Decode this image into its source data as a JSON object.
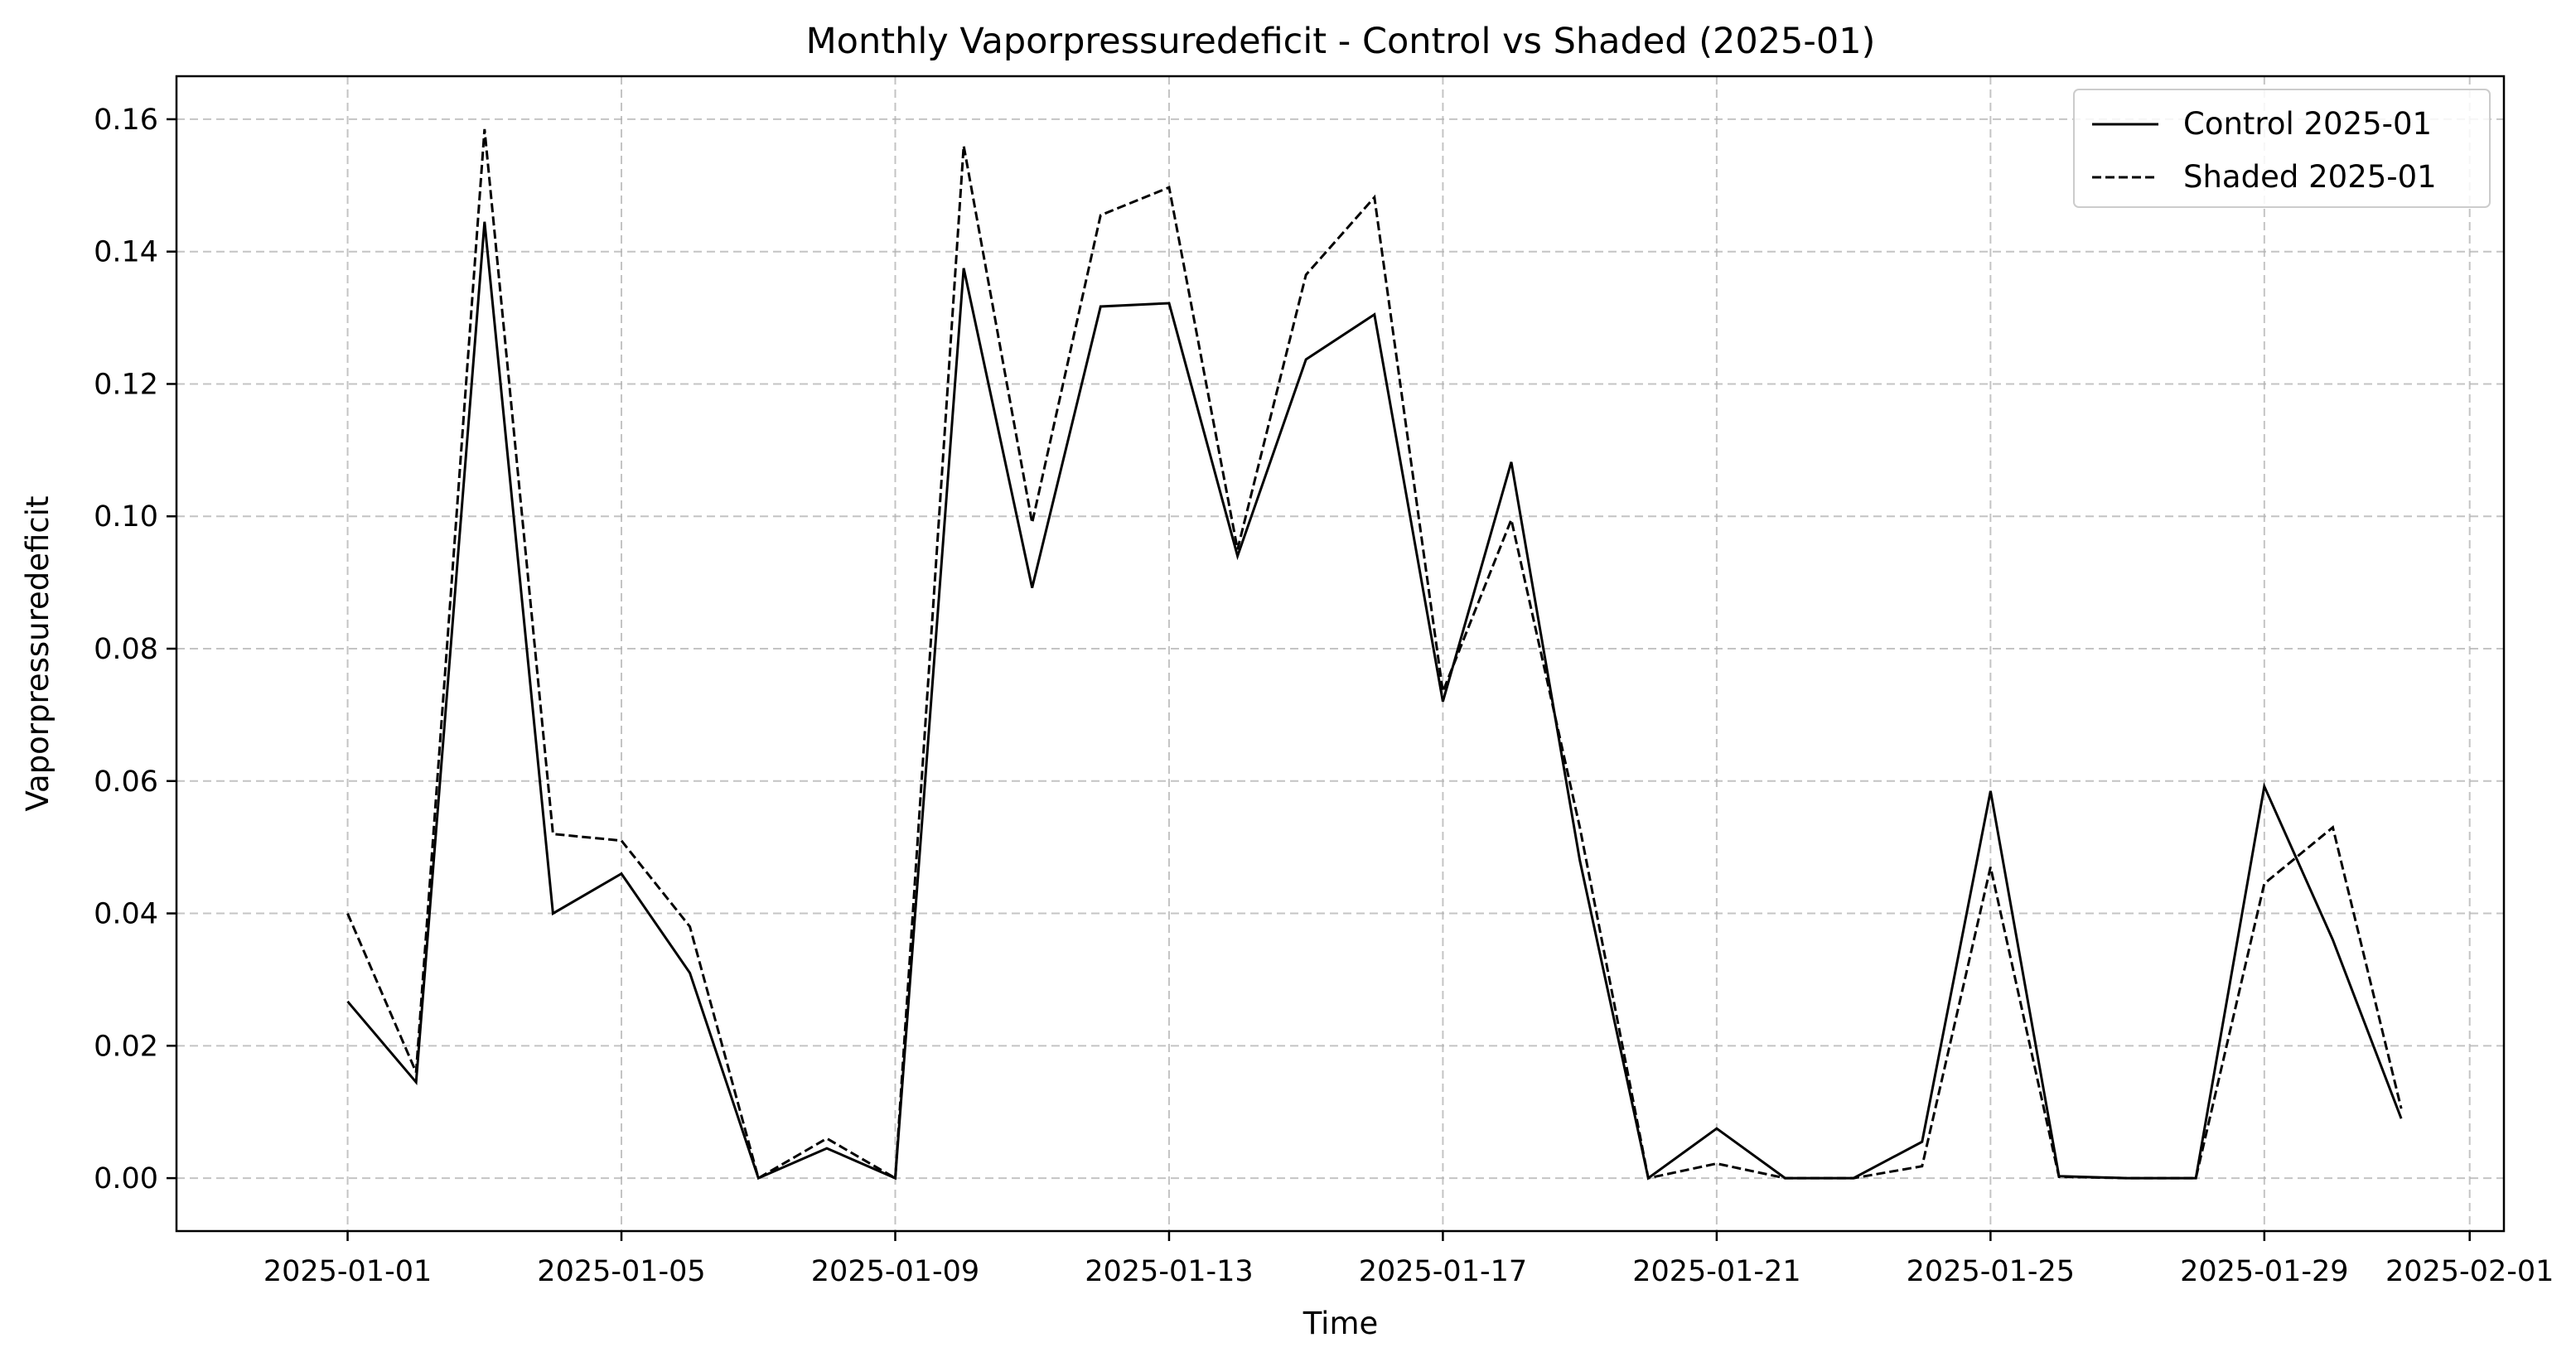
{
  "chart_data": {
    "type": "line",
    "title": "Monthly Vaporpressuredeficit - Control vs Shaded (2025-01)",
    "xlabel": "Time",
    "ylabel": "Vaporpressuredeficit",
    "xlim": [
      "2024-12-29T12:00",
      "2025-02-01T12:00"
    ],
    "ylim": [
      -0.008,
      0.1665
    ],
    "x_ticks": [
      "2025-01-01",
      "2025-01-05",
      "2025-01-09",
      "2025-01-13",
      "2025-01-17",
      "2025-01-21",
      "2025-01-25",
      "2025-01-29",
      "2025-02-01"
    ],
    "y_ticks": [
      "0.00",
      "0.02",
      "0.04",
      "0.06",
      "0.08",
      "0.10",
      "0.12",
      "0.14",
      "0.16"
    ],
    "y_tick_values": [
      0,
      0.02,
      0.04,
      0.06,
      0.08,
      0.1,
      0.12,
      0.14,
      0.16
    ],
    "grid": true,
    "legend_position": "top-right",
    "x": [
      "2025-01-01",
      "2025-01-02",
      "2025-01-03",
      "2025-01-04",
      "2025-01-05",
      "2025-01-06",
      "2025-01-07",
      "2025-01-08",
      "2025-01-09",
      "2025-01-10",
      "2025-01-11",
      "2025-01-12",
      "2025-01-13",
      "2025-01-14",
      "2025-01-15",
      "2025-01-16",
      "2025-01-17",
      "2025-01-18",
      "2025-01-19",
      "2025-01-20",
      "2025-01-21",
      "2025-01-22",
      "2025-01-23",
      "2025-01-24",
      "2025-01-25",
      "2025-01-26",
      "2025-01-27",
      "2025-01-28",
      "2025-01-29",
      "2025-01-30",
      "2025-01-31"
    ],
    "series": [
      {
        "name": "Control 2025-01",
        "style": "solid",
        "color": "#000000",
        "values": [
          0.0267,
          0.0145,
          0.1445,
          0.04,
          0.046,
          0.031,
          0.0,
          0.0045,
          0.0,
          0.1375,
          0.0892,
          0.1317,
          0.1322,
          0.094,
          0.1237,
          0.1305,
          0.072,
          0.1082,
          0.048,
          0.0,
          0.0075,
          0.0,
          0.0,
          0.0055,
          0.0585,
          0.0003,
          0.0,
          0.0,
          0.0592,
          0.036,
          0.009
        ]
      },
      {
        "name": "Shaded 2025-01",
        "style": "dashed",
        "color": "#000000",
        "values": [
          0.04,
          0.016,
          0.1585,
          0.052,
          0.051,
          0.038,
          0.0,
          0.006,
          0.0,
          0.156,
          0.099,
          0.1455,
          0.1497,
          0.095,
          0.1365,
          0.1482,
          0.0735,
          0.0995,
          0.053,
          0.0,
          0.0022,
          0.0,
          0.0,
          0.0018,
          0.047,
          0.0002,
          0.0,
          0.0,
          0.0445,
          0.053,
          0.0105
        ]
      }
    ]
  }
}
